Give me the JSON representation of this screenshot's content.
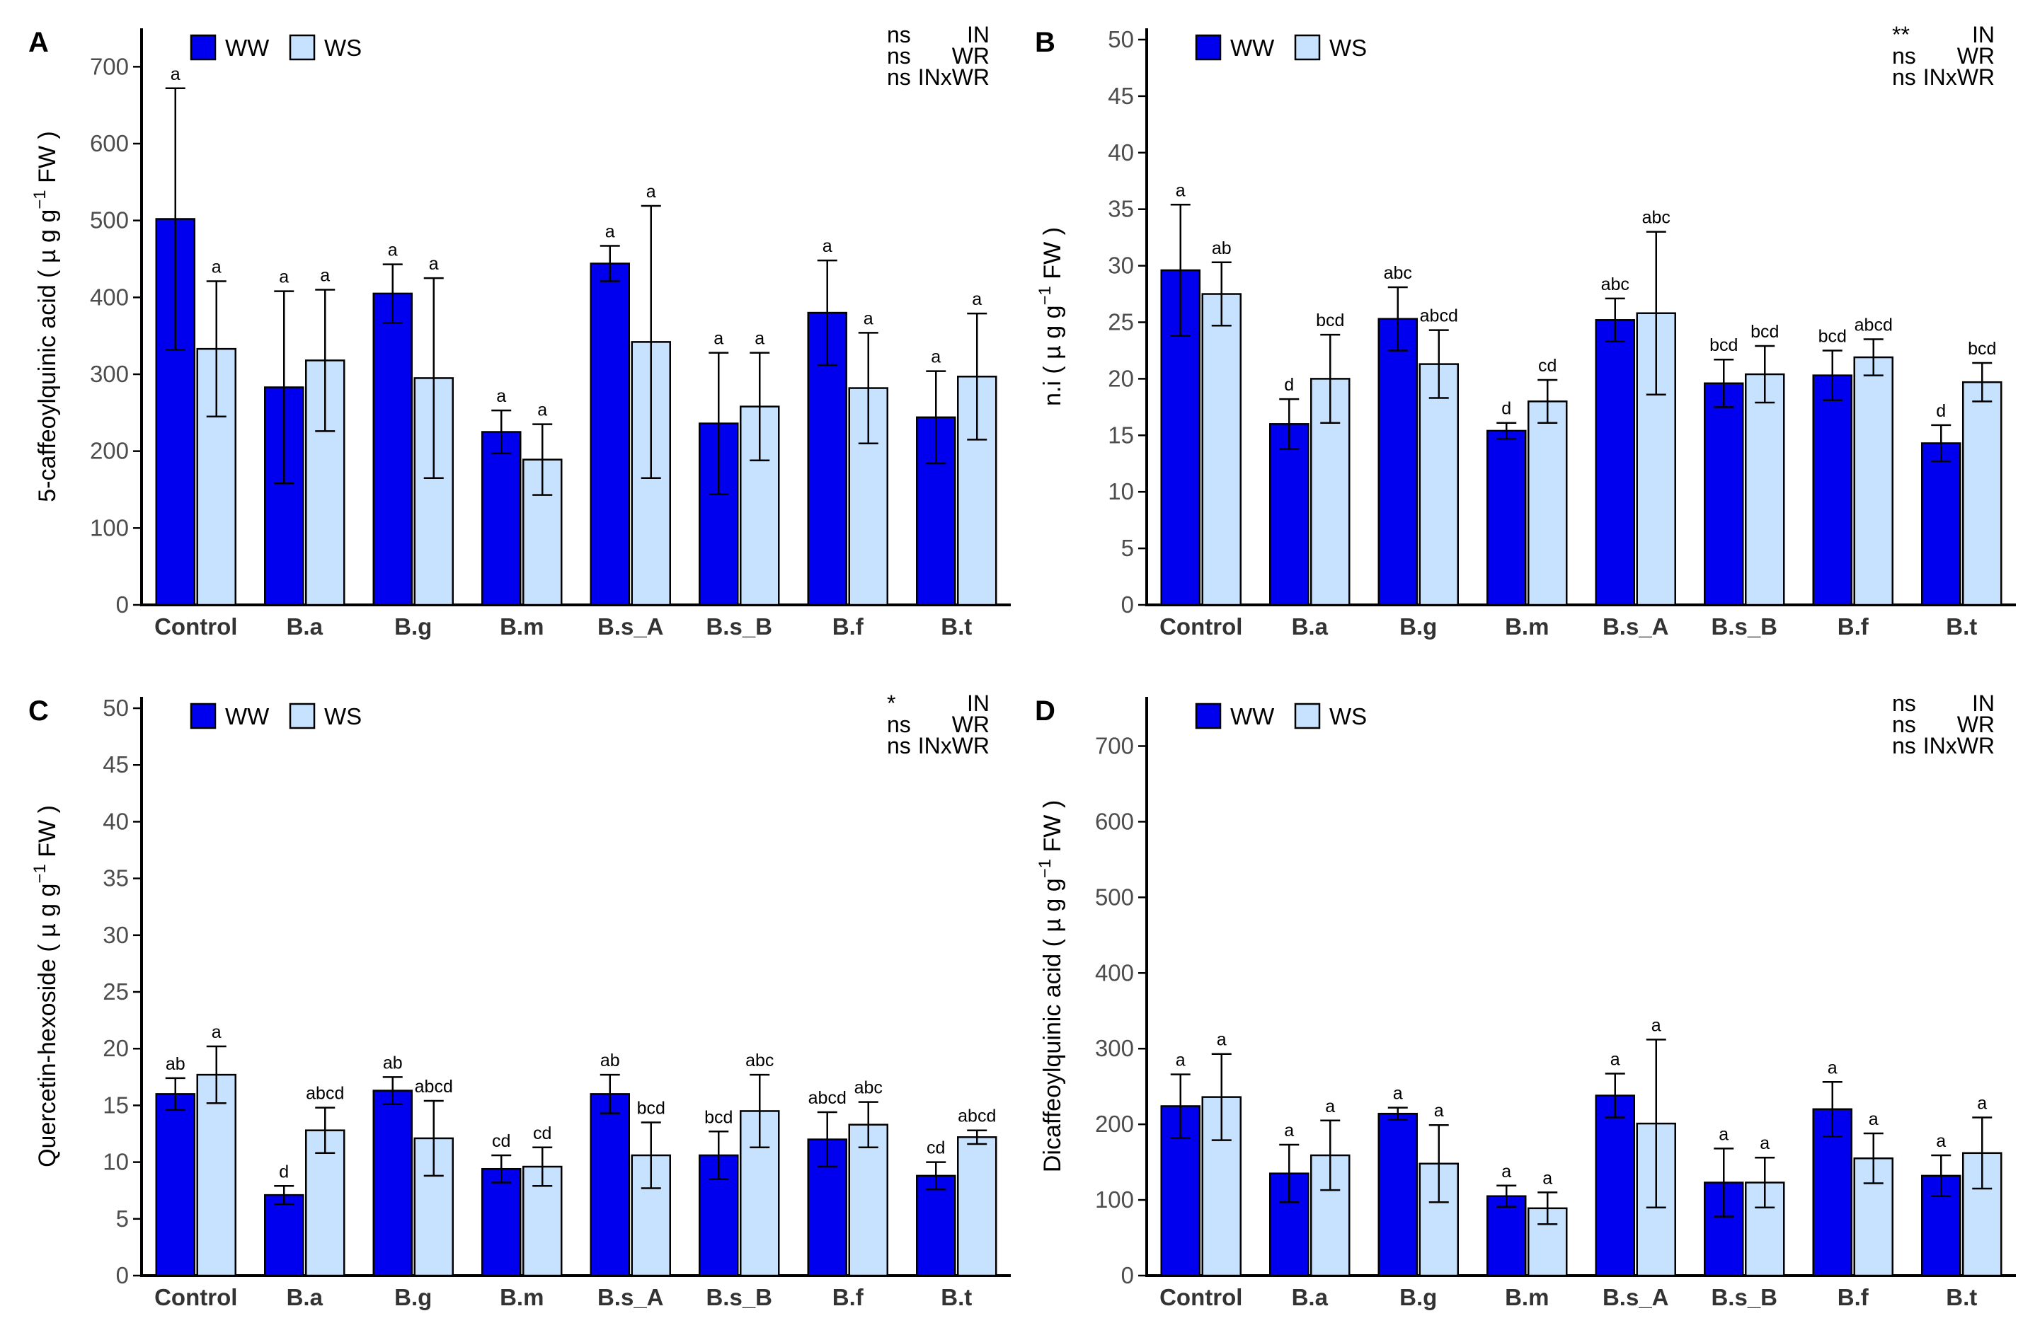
{
  "legend": {
    "ww_label": "WW",
    "ws_label": "WS"
  },
  "colors": {
    "ww": "#0000EE",
    "ws": "#C6E2FF"
  },
  "chart_data": [
    {
      "panel": "A",
      "type": "bar",
      "ylabel": "5-caffeoylquinic acid ( µ g g ⁻¹ FW )",
      "ylabel_main": "5-caffeoylquinic acid ( µ g g",
      "ylabel_sup": "−1",
      "ylabel_end": " FW )",
      "ylim": [
        0,
        750
      ],
      "yticks": [
        0,
        100,
        200,
        300,
        400,
        500,
        600,
        700
      ],
      "categories": [
        "Control",
        "B.a",
        "B.g",
        "B.m",
        "B.s_A",
        "B.s_B",
        "B.f",
        "B.t"
      ],
      "series": [
        {
          "name": "WW",
          "values": [
            502,
            283,
            405,
            225,
            444,
            236,
            380,
            244
          ],
          "errors": [
            170,
            125,
            38,
            28,
            23,
            92,
            68,
            60
          ],
          "letters": [
            "a",
            "a",
            "a",
            "a",
            "a",
            "a",
            "a",
            "a"
          ]
        },
        {
          "name": "WS",
          "values": [
            333,
            318,
            295,
            189,
            342,
            258,
            282,
            297
          ],
          "errors": [
            88,
            92,
            130,
            46,
            177,
            70,
            72,
            82
          ],
          "letters": [
            "a",
            "a",
            "a",
            "a",
            "a",
            "a",
            "a",
            "a"
          ]
        }
      ],
      "significance": [
        {
          "mark": "ns",
          "factor": "IN"
        },
        {
          "mark": "ns",
          "factor": "WR"
        },
        {
          "mark": "ns",
          "factor": "INxWR"
        }
      ]
    },
    {
      "panel": "B",
      "type": "bar",
      "ylabel": "n.i ( µ g g ⁻¹ FW )",
      "ylabel_main": "n.i  ( µ g g",
      "ylabel_sup": "−1",
      "ylabel_end": " FW )",
      "ylim": [
        0,
        51
      ],
      "yticks": [
        0,
        5,
        10,
        15,
        20,
        25,
        30,
        35,
        40,
        45,
        50
      ],
      "categories": [
        "Control",
        "B.a",
        "B.g",
        "B.m",
        "B.s_A",
        "B.s_B",
        "B.f",
        "B.t"
      ],
      "series": [
        {
          "name": "WW",
          "values": [
            29.6,
            16.0,
            25.3,
            15.4,
            25.2,
            19.6,
            20.3,
            14.3
          ],
          "errors": [
            5.8,
            2.2,
            2.8,
            0.7,
            1.9,
            2.1,
            2.2,
            1.6
          ],
          "letters": [
            "a",
            "d",
            "abc",
            "d",
            "abc",
            "bcd",
            "bcd",
            "d"
          ]
        },
        {
          "name": "WS",
          "values": [
            27.5,
            20.0,
            21.3,
            18.0,
            25.8,
            20.4,
            21.9,
            19.7
          ],
          "errors": [
            2.8,
            3.9,
            3.0,
            1.9,
            7.2,
            2.5,
            1.6,
            1.7
          ],
          "letters": [
            "ab",
            "bcd",
            "abcd",
            "cd",
            "abc",
            "bcd",
            "abcd",
            "bcd"
          ]
        }
      ],
      "significance": [
        {
          "mark": "**",
          "factor": "IN"
        },
        {
          "mark": "ns",
          "factor": "WR"
        },
        {
          "mark": "ns",
          "factor": "INxWR"
        }
      ]
    },
    {
      "panel": "C",
      "type": "bar",
      "ylabel": "Quercetin-hexoside ( µ g g ⁻¹ FW )",
      "ylabel_main": "Quercetin-hexoside ( µ g g",
      "ylabel_sup": "−1",
      "ylabel_end": " FW )",
      "ylim": [
        0,
        51
      ],
      "yticks": [
        0,
        5,
        10,
        15,
        20,
        25,
        30,
        35,
        40,
        45,
        50
      ],
      "categories": [
        "Control",
        "B.a",
        "B.g",
        "B.m",
        "B.s_A",
        "B.s_B",
        "B.f",
        "B.t"
      ],
      "series": [
        {
          "name": "WW",
          "values": [
            16.0,
            7.1,
            16.3,
            9.4,
            16.0,
            10.6,
            12.0,
            8.8
          ],
          "errors": [
            1.4,
            0.8,
            1.2,
            1.2,
            1.7,
            2.1,
            2.4,
            1.2
          ],
          "letters": [
            "ab",
            "d",
            "ab",
            "cd",
            "ab",
            "bcd",
            "abcd",
            "cd"
          ]
        },
        {
          "name": "WS",
          "values": [
            17.7,
            12.8,
            12.1,
            9.6,
            10.6,
            14.5,
            13.3,
            12.2
          ],
          "errors": [
            2.5,
            2.0,
            3.3,
            1.7,
            2.9,
            3.2,
            2.0,
            0.6
          ],
          "letters": [
            "a",
            "abcd",
            "abcd",
            "cd",
            "bcd",
            "abc",
            "abc",
            "abcd"
          ]
        }
      ],
      "significance": [
        {
          "mark": "*",
          "factor": "IN"
        },
        {
          "mark": "ns",
          "factor": "WR"
        },
        {
          "mark": "ns",
          "factor": "INxWR"
        }
      ]
    },
    {
      "panel": "D",
      "type": "bar",
      "ylabel": "Dicaffeoylquinic acid ( µ g g ⁻¹ FW )",
      "ylabel_main": "Dicaffeoylquinic acid ( µ g g",
      "ylabel_sup": "−1",
      "ylabel_end": " FW )",
      "ylim": [
        0,
        765
      ],
      "yticks": [
        0,
        100,
        200,
        300,
        400,
        500,
        600,
        700
      ],
      "categories": [
        "Control",
        "B.a",
        "B.g",
        "B.m",
        "B.s_A",
        "B.s_B",
        "B.f",
        "B.t"
      ],
      "series": [
        {
          "name": "WW",
          "values": [
            224,
            135,
            214,
            105,
            238,
            123,
            220,
            132
          ],
          "errors": [
            42,
            38,
            8,
            14,
            29,
            45,
            36,
            27
          ],
          "letters": [
            "a",
            "a",
            "a",
            "a",
            "a",
            "a",
            "a",
            "a"
          ]
        },
        {
          "name": "WS",
          "values": [
            236,
            159,
            148,
            89,
            201,
            123,
            155,
            162
          ],
          "errors": [
            57,
            46,
            51,
            21,
            111,
            33,
            33,
            47
          ],
          "letters": [
            "a",
            "a",
            "a",
            "a",
            "a",
            "a",
            "a",
            "a"
          ]
        }
      ],
      "significance": [
        {
          "mark": "ns",
          "factor": "IN"
        },
        {
          "mark": "ns",
          "factor": "WR"
        },
        {
          "mark": "ns",
          "factor": "INxWR"
        }
      ]
    }
  ]
}
